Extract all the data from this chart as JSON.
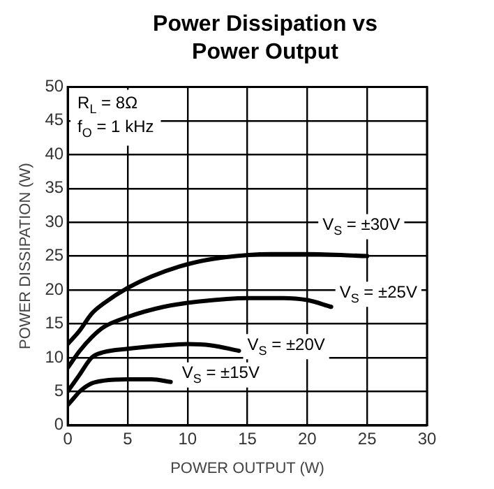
{
  "chart_data": {
    "type": "line",
    "title": "Power Dissipation vs Power Output",
    "xlabel": "POWER OUTPUT (W)",
    "ylabel": "POWER DISSIPATION (W)",
    "annotations": [
      "R$_{L}$ = 8Ω",
      "f$_{O}$ = 1 kHz"
    ],
    "xlim": [
      0,
      30
    ],
    "xticks": [
      0,
      5,
      10,
      15,
      20,
      25,
      30
    ],
    "ylim": [
      0,
      50
    ],
    "yticks": [
      0,
      5,
      10,
      15,
      20,
      25,
      30,
      35,
      40,
      45,
      50
    ],
    "grid": true,
    "legend": false,
    "marker": "none",
    "line_style": "solid",
    "series": [
      {
        "name": "V$_{S}$ = ±30V",
        "color": "#000000",
        "x": [
          0,
          1,
          2,
          3,
          5,
          7,
          10,
          13,
          17,
          20,
          25
        ],
        "values": [
          12,
          14,
          16.5,
          18,
          20.3,
          22,
          23.8,
          24.8,
          25.3,
          25.3,
          25
        ]
      },
      {
        "name": "V$_{S}$ = ±25V",
        "color": "#000000",
        "x": [
          0,
          1,
          2,
          3,
          5,
          8,
          11,
          15,
          18,
          20,
          22
        ],
        "values": [
          8.5,
          11,
          13,
          14.5,
          16,
          17.5,
          18.3,
          18.8,
          18.8,
          18.5,
          17.5
        ]
      },
      {
        "name": "V$_{S}$ = ±20V",
        "color": "#000000",
        "x": [
          0,
          1,
          2,
          3,
          5,
          8,
          10,
          12,
          14.3
        ],
        "values": [
          5,
          7.5,
          10,
          10.8,
          11.3,
          11.8,
          12,
          11.8,
          11
        ]
      },
      {
        "name": "V$_{S}$ = ±15V",
        "color": "#000000",
        "x": [
          0,
          0.5,
          1,
          2,
          3,
          5,
          7,
          8.6
        ],
        "values": [
          3,
          4,
          5,
          6.2,
          6.6,
          6.8,
          6.8,
          6.4
        ]
      }
    ]
  }
}
